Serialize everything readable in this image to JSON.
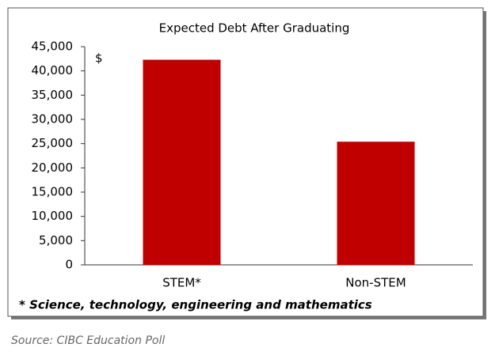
{
  "chart_data": {
    "type": "bar",
    "title": "Expected Debt After Graduating",
    "y_label": "$",
    "categories": [
      "STEM*",
      "Non-STEM"
    ],
    "values": [
      42300,
      25400
    ],
    "color": "#c00000",
    "ylim": [
      0,
      45000
    ],
    "yticks": [
      0,
      {
        "value": 5000,
        "label": "5,000"
      },
      {
        "value": 10000,
        "label": "10,000"
      },
      {
        "value": 15000,
        "label": "15,000"
      },
      {
        "value": 20000,
        "label": "20,000"
      },
      {
        "value": 25000,
        "label": "25,000"
      },
      {
        "value": 30000,
        "label": "30,000"
      },
      {
        "value": 35000,
        "label": "35,000"
      },
      {
        "value": 40000,
        "label": "40,000"
      },
      {
        "value": 45000,
        "label": "45,000"
      }
    ],
    "grid": false,
    "footnote": "* Science, technology, engineering and mathematics",
    "source": "Source: CIBC Education Poll"
  }
}
